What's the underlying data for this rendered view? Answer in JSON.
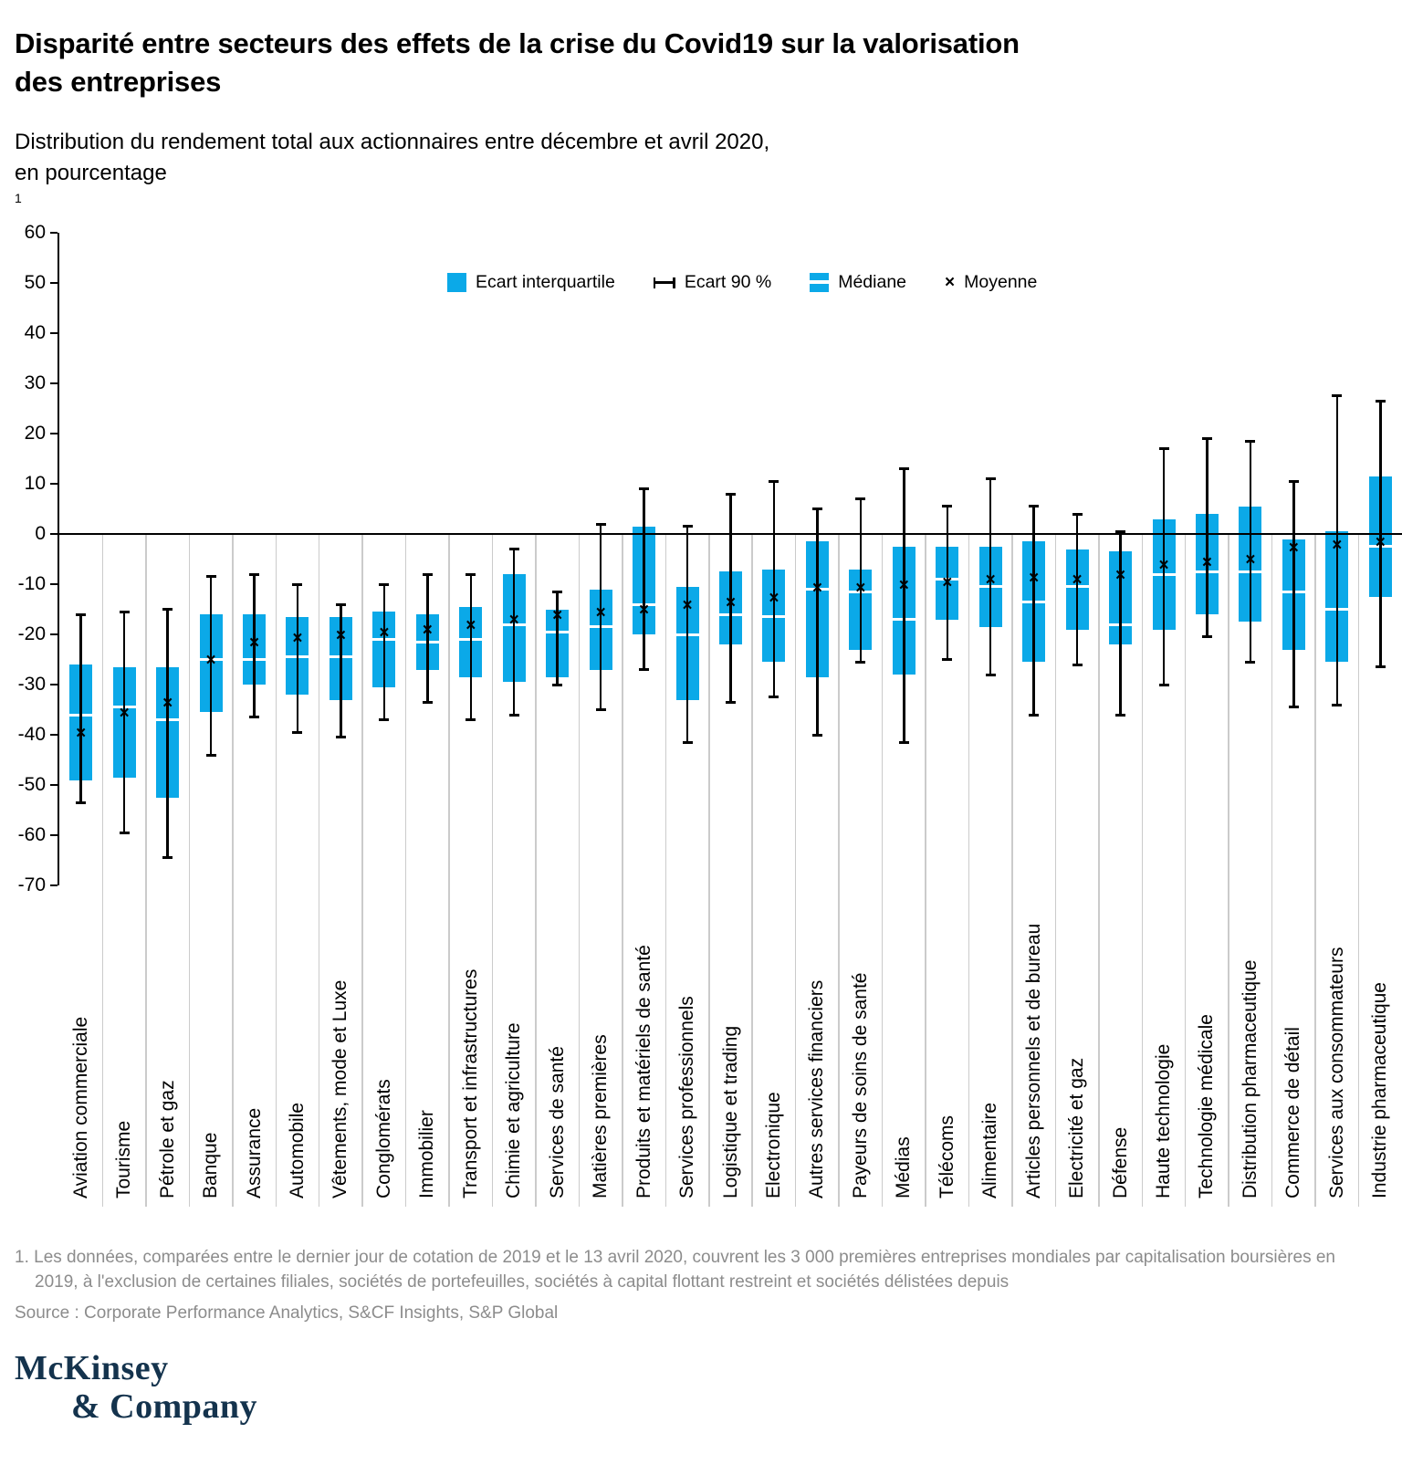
{
  "page": {
    "title_lines": [
      "Disparité entre secteurs des effets de la crise du Covid19 sur la valorisation",
      "des entreprises"
    ],
    "subtitle_lines": [
      "Distribution du rendement total aux actionnaires entre décembre et avril 2020,",
      "en pourcentage"
    ],
    "subtitle_sup": "1",
    "footnote_marker": "1.",
    "footnote_body": "Les données, comparées entre le dernier jour de cotation de 2019 et le 13 avril 2020, couvrent les 3 000 premières entreprises mondiales par capitalisation boursières en 2019, à l'exclusion de certaines filiales, sociétés de portefeuilles, sociétés à capital flottant restreint et sociétés délistées depuis",
    "source": "Source : Corporate Performance Analytics, S&CF Insights, S&P Global",
    "logo_line1": "McKinsey",
    "logo_line2": "& Company"
  },
  "legend": [
    {
      "icon": "interquartile-swatch-icon",
      "label": "Ecart interquartile"
    },
    {
      "icon": "range-whisker-icon",
      "label": "Ecart 90 %"
    },
    {
      "icon": "median-swatch-icon",
      "label": "Médiane"
    },
    {
      "icon": "mean-x-icon",
      "label": "Moyenne"
    }
  ],
  "glyphs": {
    "mean_x": "×"
  },
  "colors": {
    "bar_blue": "#0BA9E8",
    "median_white": "#FFFFFF",
    "axis_black": "#000000",
    "gridline_gray": "#CBCBCB",
    "footnote_gray": "#8C8C8C",
    "logo_navy": "#14334D"
  },
  "chart_data": {
    "type": "boxplot",
    "title": "Disparité entre secteurs des effets de la crise du Covid19 sur la valorisation des entreprises",
    "subtitle": "Distribution du rendement total aux actionnaires entre décembre et avril 2020, en pourcentage",
    "unit": "%",
    "legend_position": "top-center",
    "grid": "vertical category separators only",
    "y_axis": {
      "min": -70,
      "max": 60,
      "step": 10,
      "ticks": [
        {
          "value": 60,
          "label": "60"
        },
        {
          "value": 50,
          "label": "50"
        },
        {
          "value": 40,
          "label": "40"
        },
        {
          "value": 30,
          "label": "30"
        },
        {
          "value": 20,
          "label": "20"
        },
        {
          "value": 10,
          "label": "10"
        },
        {
          "value": 0,
          "label": "0"
        },
        {
          "value": -10,
          "label": "-10"
        },
        {
          "value": -20,
          "label": "-20"
        },
        {
          "value": -30,
          "label": "-30"
        },
        {
          "value": -40,
          "label": "-40"
        },
        {
          "value": -50,
          "label": "-50"
        },
        {
          "value": -60,
          "label": "-60"
        },
        {
          "value": -70,
          "label": "-70"
        }
      ]
    },
    "series_keys": [
      "whisker_high_p90",
      "q3",
      "median",
      "mean",
      "q1",
      "whisker_low_p10"
    ],
    "values": [
      {
        "label": "Aviation commerciale",
        "high": -16,
        "q3": -26,
        "median": -36,
        "mean": -40,
        "q1": -49,
        "low": -53.5
      },
      {
        "label": "Tourisme",
        "high": -15.5,
        "q3": -26.5,
        "median": -34.5,
        "mean": -36,
        "q1": -48.5,
        "low": -59.5
      },
      {
        "label": "Pétrole et gaz",
        "high": -15,
        "q3": -26.5,
        "median": -37,
        "mean": -34,
        "q1": -52.5,
        "low": -64.5
      },
      {
        "label": "Banque",
        "high": -8.5,
        "q3": -16,
        "median": -25,
        "mean": -25.5,
        "q1": -35.5,
        "low": -44
      },
      {
        "label": "Assurance",
        "high": -8,
        "q3": -16,
        "median": -25,
        "mean": -22,
        "q1": -30,
        "low": -36.5
      },
      {
        "label": "Automobile",
        "high": -10,
        "q3": -16.5,
        "median": -24.5,
        "mean": -21,
        "q1": -32,
        "low": -39.5
      },
      {
        "label": "Vêtements, mode et Luxe",
        "high": -14,
        "q3": -16.5,
        "median": -24.5,
        "mean": -20.5,
        "q1": -33,
        "low": -40.5
      },
      {
        "label": "Conglomérats",
        "high": -10,
        "q3": -15.5,
        "median": -21,
        "mean": -20,
        "q1": -30.5,
        "low": -37
      },
      {
        "label": "Immobilier",
        "high": -8,
        "q3": -16,
        "median": -21.5,
        "mean": -19.5,
        "q1": -27,
        "low": -33.5
      },
      {
        "label": "Transport et infrastructures",
        "high": -8,
        "q3": -14.5,
        "median": -21,
        "mean": -18.5,
        "q1": -28.5,
        "low": -37
      },
      {
        "label": "Chimie et agriculture",
        "high": -3,
        "q3": -8,
        "median": -18,
        "mean": -17.5,
        "q1": -29.5,
        "low": -36
      },
      {
        "label": "Services de santé",
        "high": -11.5,
        "q3": -15,
        "median": -19.5,
        "mean": -16.5,
        "q1": -28.5,
        "low": -30
      },
      {
        "label": "Matières premières",
        "high": 2,
        "q3": -11,
        "median": -18.5,
        "mean": -16,
        "q1": -27,
        "low": -35
      },
      {
        "label": "Produits et matériels de santé",
        "high": 9,
        "q3": 1.5,
        "median": -14,
        "mean": -15.5,
        "q1": -20,
        "low": -27
      },
      {
        "label": "Services professionnels",
        "high": 1.5,
        "q3": -10.5,
        "median": -20,
        "mean": -14.5,
        "q1": -33,
        "low": -41.5
      },
      {
        "label": "Logistique et trading",
        "high": 8,
        "q3": -7.5,
        "median": -16,
        "mean": -14,
        "q1": -22,
        "low": -33.5
      },
      {
        "label": "Electronique",
        "high": 10.5,
        "q3": -7,
        "median": -16.5,
        "mean": -13,
        "q1": -25.5,
        "low": -32.5
      },
      {
        "label": "Autres services financiers",
        "high": 5,
        "q3": -1.5,
        "median": -11,
        "mean": -11,
        "q1": -28.5,
        "low": -40
      },
      {
        "label": "Payeurs de soins de santé",
        "high": 7,
        "q3": -7,
        "median": -11.5,
        "mean": -11,
        "q1": -23,
        "low": -25.5
      },
      {
        "label": "Médias",
        "high": 13,
        "q3": -2.5,
        "median": -17,
        "mean": -10.5,
        "q1": -28,
        "low": -41.5
      },
      {
        "label": "Télécoms",
        "high": 5.5,
        "q3": -2.5,
        "median": -9,
        "mean": -10,
        "q1": -17,
        "low": -25
      },
      {
        "label": "Alimentaire",
        "high": 11,
        "q3": -2.5,
        "median": -10.5,
        "mean": -9.5,
        "q1": -18.5,
        "low": -28
      },
      {
        "label": "Articles personnels et de bureau",
        "high": 5.5,
        "q3": -1.5,
        "median": -13.5,
        "mean": -9,
        "q1": -25.5,
        "low": -36
      },
      {
        "label": "Electricité et gaz",
        "high": 4,
        "q3": -3,
        "median": -10.5,
        "mean": -9.5,
        "q1": -19,
        "low": -26
      },
      {
        "label": "Défense",
        "high": 0.5,
        "q3": -3.5,
        "median": -18,
        "mean": -8.5,
        "q1": -22,
        "low": -36
      },
      {
        "label": "Haute technologie",
        "high": 17,
        "q3": 3,
        "median": -8,
        "mean": -6.5,
        "q1": -19,
        "low": -30
      },
      {
        "label": "Technologie médicale",
        "high": 19,
        "q3": 4,
        "median": -7.5,
        "mean": -6,
        "q1": -16,
        "low": -20.5
      },
      {
        "label": "Distribution pharmaceutique",
        "high": 18.5,
        "q3": 5.5,
        "median": -7.5,
        "mean": -5.5,
        "q1": -17.5,
        "low": -25.5
      },
      {
        "label": "Commerce de détail",
        "high": 10.5,
        "q3": -1,
        "median": -11.5,
        "mean": -3,
        "q1": -23,
        "low": -34.5
      },
      {
        "label": "Services aux consommateurs",
        "high": 27.5,
        "q3": 0.5,
        "median": -15,
        "mean": -2.5,
        "q1": -25.5,
        "low": -34
      },
      {
        "label": "Industrie pharmaceutique",
        "high": 26.5,
        "q3": 11.5,
        "median": -2.5,
        "mean": -2,
        "q1": -12.5,
        "low": -26.5
      }
    ]
  }
}
